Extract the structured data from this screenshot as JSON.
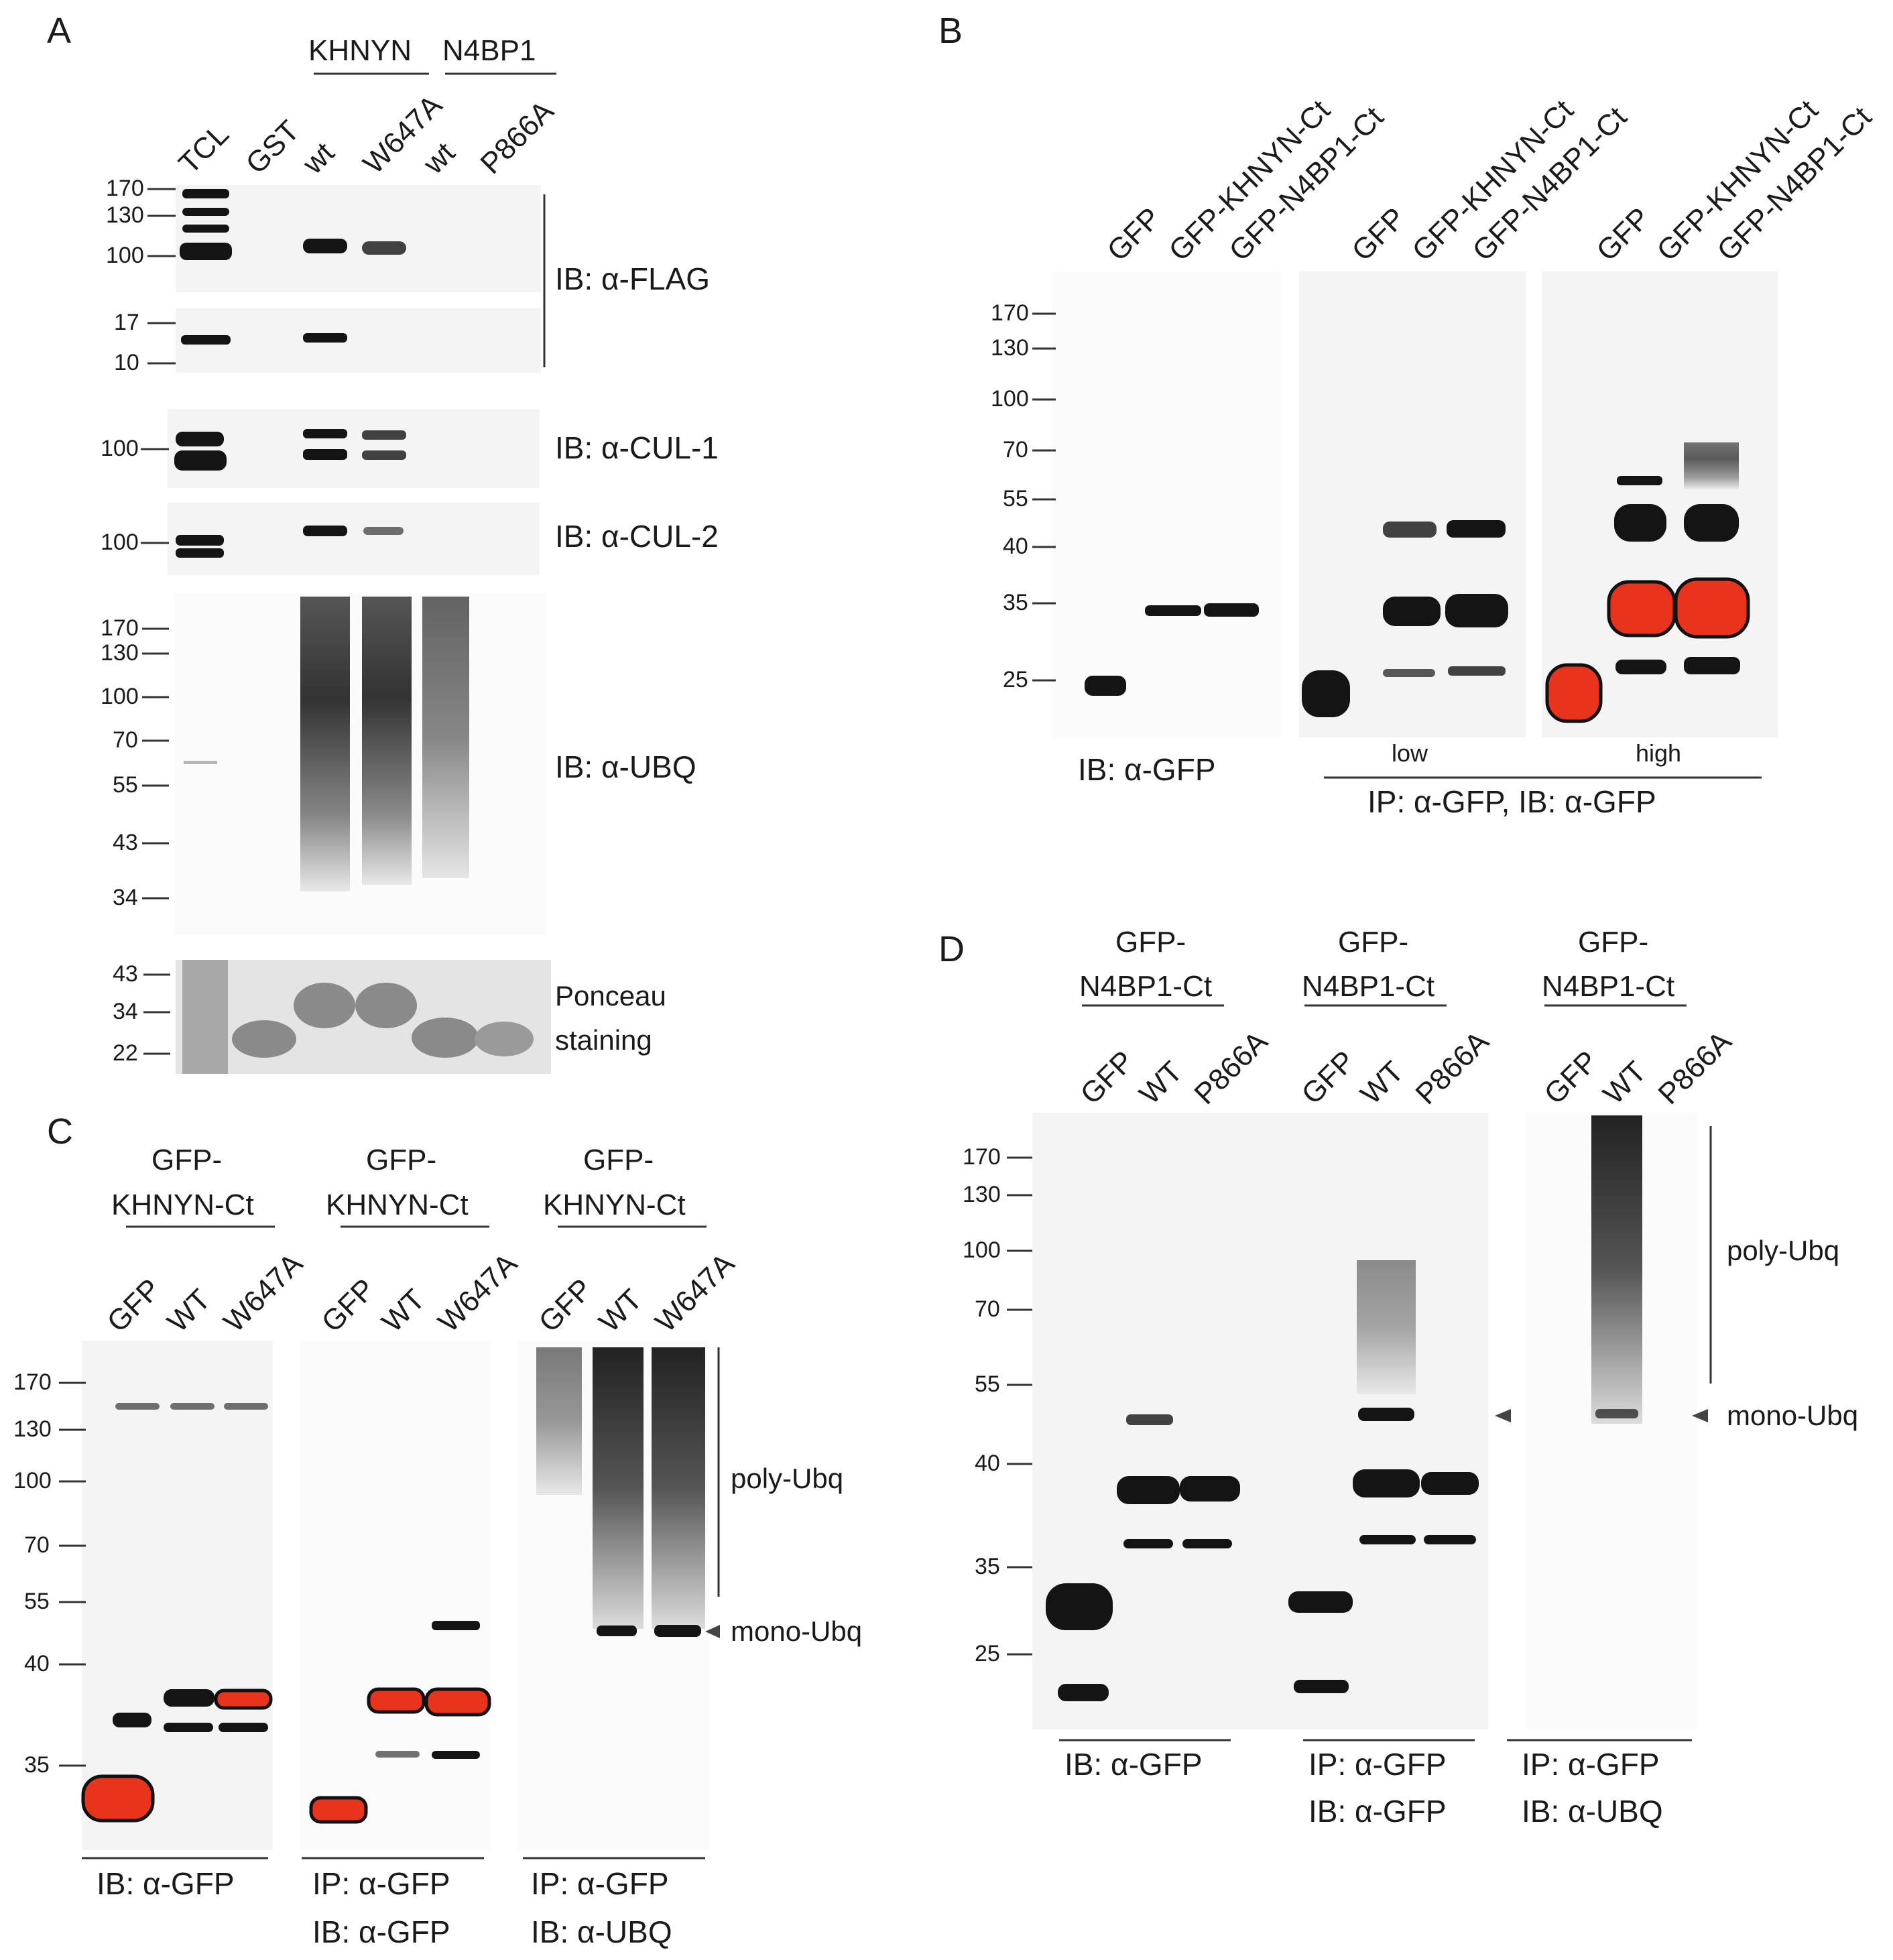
{
  "panelA": {
    "letter": "A",
    "groups": [
      "KHNYN",
      "N4BP1"
    ],
    "lanes": [
      "TCL",
      "GST",
      "wt",
      "W647A",
      "wt",
      "P866A"
    ],
    "mw_flag": [
      "170",
      "130",
      "100",
      "17",
      "10"
    ],
    "mw_cul1": [
      "100"
    ],
    "mw_cul2": [
      "100"
    ],
    "mw_ubq": [
      "170",
      "130",
      "100",
      "70",
      "55",
      "43",
      "34"
    ],
    "mw_ponceau": [
      "43",
      "34",
      "22"
    ],
    "ib_flag": "IB: α-FLAG",
    "ib_cul1": "IB: α-CUL-1",
    "ib_cul2": "IB: α-CUL-2",
    "ib_ubq": "IB: α-UBQ",
    "ponceau_1": "Ponceau",
    "ponceau_2": "staining"
  },
  "panelB": {
    "letter": "B",
    "lanes": [
      "GFP",
      "GFP-KHNYN-Ct",
      "GFP-N4BP1-Ct",
      "GFP",
      "GFP-KHNYN-Ct",
      "GFP-N4BP1-Ct",
      "GFP",
      "GFP-KHNYN-Ct",
      "GFP-N4BP1-Ct"
    ],
    "mw": [
      "170",
      "130",
      "100",
      "70",
      "55",
      "40",
      "35",
      "25"
    ],
    "ib": "IB: α-GFP",
    "low": "low",
    "high": "high",
    "ip": "IP: α-GFP, IB: α-GFP"
  },
  "panelC": {
    "letter": "C",
    "group_l1": "GFP-",
    "group_l2": "KHNYN-Ct",
    "lanes": [
      "GFP",
      "WT",
      "W647A"
    ],
    "mw": [
      "170",
      "130",
      "100",
      "70",
      "55",
      "40",
      "35"
    ],
    "ib1": "IB: α-GFP",
    "ip2": "IP: α-GFP",
    "ib2": "IB: α-GFP",
    "ip3": "IP: α-GFP",
    "ib3": "IB: α-UBQ",
    "poly": "poly-Ubq",
    "mono": "mono-Ubq"
  },
  "panelD": {
    "letter": "D",
    "group_l1": "GFP-",
    "group_l2": "N4BP1-Ct",
    "lanes": [
      "GFP",
      "WT",
      "P866A"
    ],
    "mw": [
      "170",
      "130",
      "100",
      "70",
      "55",
      "40",
      "35",
      "25"
    ],
    "ib1": "IB: α-GFP",
    "ip2": "IP: α-GFP",
    "ib2": "IB: α-GFP",
    "ip3": "IP: α-GFP",
    "ib3": "IB: α-UBQ",
    "poly": "poly-Ubq",
    "mono": "mono-Ubq"
  },
  "colors": {
    "saturated": "#e8341c",
    "band": "#141414"
  }
}
